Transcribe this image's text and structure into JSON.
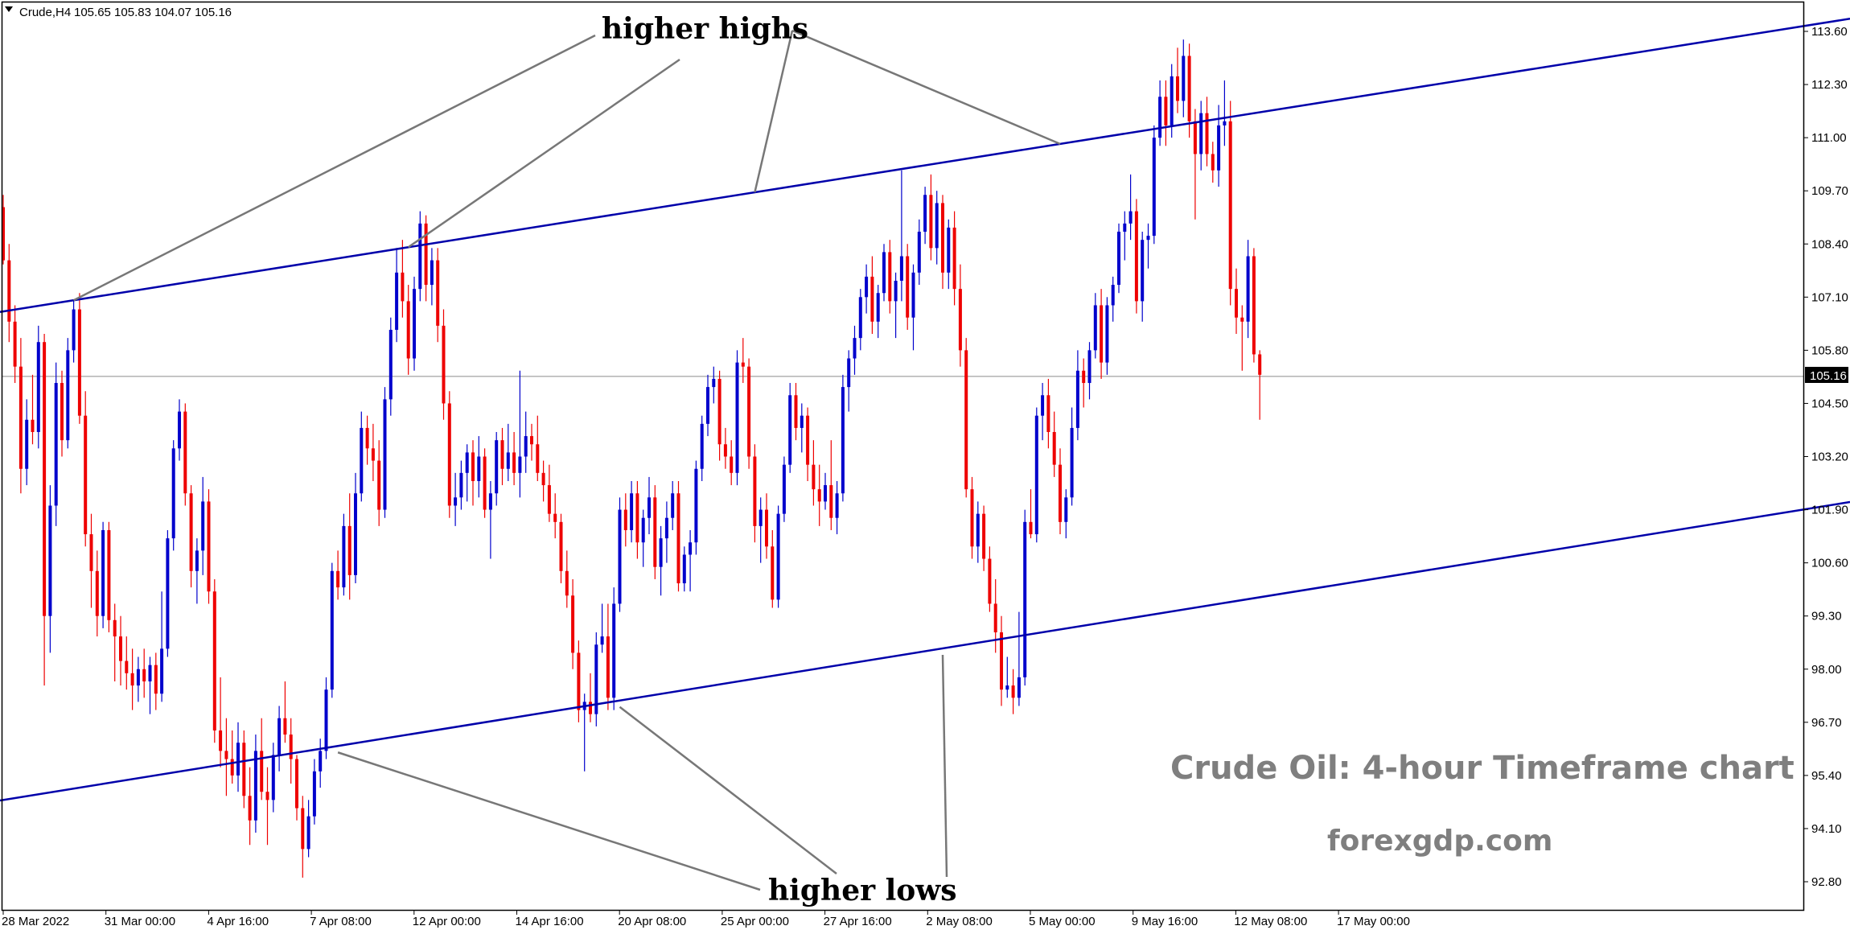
{
  "header": {
    "symbol": "Crude,H4",
    "ohlc": "105.65 105.83 104.07 105.16"
  },
  "chart_data": {
    "type": "candlestick",
    "title": "Crude Oil: 4-hour Timeframe chart",
    "watermark": "forexgdp.com",
    "current_price": "105.16",
    "y_ticks": [
      "113.60",
      "112.30",
      "111.00",
      "109.70",
      "108.40",
      "107.10",
      "105.80",
      "104.50",
      "103.20",
      "101.90",
      "100.60",
      "99.30",
      "98.00",
      "96.70",
      "95.40",
      "94.10",
      "92.80"
    ],
    "ylim": [
      92.8,
      113.6
    ],
    "x_ticks": [
      "28 Mar 2022",
      "31 Mar 00:00",
      "4 Apr 16:00",
      "7 Apr 08:00",
      "12 Apr 00:00",
      "14 Apr 16:00",
      "20 Apr 08:00",
      "25 Apr 00:00",
      "27 Apr 16:00",
      "2 May 08:00",
      "5 May 00:00",
      "9 May 16:00",
      "12 May 08:00",
      "17 May 00:00"
    ],
    "annotations": [
      "higher highs",
      "higher lows"
    ],
    "colors": {
      "up": "#0000cc",
      "down": "#ee0000",
      "trendline": "#0000aa",
      "pointer": "#777777",
      "price_line": "#8c8c8c"
    },
    "trendlines": [
      {
        "name": "resistance",
        "from": {
          "bar": 0,
          "price": 106.75
        },
        "to": {
          "bar": 246,
          "price": 112.35
        }
      },
      {
        "name": "support",
        "from": {
          "bar": 0,
          "price": 94.8
        },
        "to": {
          "bar": 246,
          "price": 100.5
        }
      }
    ],
    "anchors": [
      {
        "points": [
          {
            "bar": 12,
            "price": 120
          },
          {
            "bar": 46,
            "price": 120
          },
          {
            "bar": 69,
            "price": 120
          },
          {
            "bar": 102,
            "price": 120
          },
          {
            "bar": 137,
            "price": 120
          },
          {
            "bar": 180,
            "price": 120
          }
        ]
      },
      {
        "points": [
          {
            "bar": 57,
            "price": 98
          },
          {
            "bar": 105,
            "price": 98
          },
          {
            "bar": 158,
            "price": 98
          }
        ]
      }
    ],
    "candles": [
      [
        109.3,
        109.6,
        107.9,
        108.0
      ],
      [
        108.0,
        108.4,
        106.0,
        106.5
      ],
      [
        106.5,
        106.9,
        105.0,
        105.4
      ],
      [
        105.4,
        106.1,
        102.3,
        102.9
      ],
      [
        102.9,
        104.6,
        102.5,
        104.1
      ],
      [
        104.1,
        105.2,
        103.5,
        103.8
      ],
      [
        103.8,
        106.4,
        103.4,
        106.0
      ],
      [
        106.0,
        106.2,
        97.6,
        99.3
      ],
      [
        99.3,
        102.5,
        98.4,
        102.0
      ],
      [
        102.0,
        105.5,
        101.5,
        105.0
      ],
      [
        105.0,
        105.3,
        103.2,
        103.6
      ],
      [
        103.6,
        106.1,
        103.4,
        105.8
      ],
      [
        105.8,
        107.0,
        105.5,
        106.8
      ],
      [
        106.8,
        107.2,
        104.0,
        104.2
      ],
      [
        104.2,
        104.8,
        101.0,
        101.3
      ],
      [
        101.3,
        101.8,
        99.5,
        100.4
      ],
      [
        100.4,
        100.9,
        98.8,
        99.3
      ],
      [
        99.3,
        101.6,
        99.0,
        101.4
      ],
      [
        101.4,
        101.6,
        98.9,
        99.2
      ],
      [
        99.2,
        99.6,
        97.7,
        98.8
      ],
      [
        98.8,
        99.3,
        97.6,
        98.2
      ],
      [
        98.2,
        98.8,
        97.5,
        97.9
      ],
      [
        97.9,
        98.5,
        97.0,
        97.6
      ],
      [
        97.6,
        98.3,
        97.2,
        98.0
      ],
      [
        98.0,
        98.5,
        97.3,
        97.7
      ],
      [
        97.7,
        98.3,
        96.9,
        98.1
      ],
      [
        98.1,
        98.4,
        97.0,
        97.4
      ],
      [
        97.4,
        99.9,
        97.2,
        98.5
      ],
      [
        98.5,
        101.4,
        98.3,
        101.2
      ],
      [
        101.2,
        103.6,
        100.9,
        103.4
      ],
      [
        103.4,
        104.6,
        103.1,
        104.3
      ],
      [
        104.3,
        104.5,
        102.0,
        102.3
      ],
      [
        102.3,
        102.5,
        100.0,
        100.4
      ],
      [
        100.4,
        101.2,
        99.6,
        100.9
      ],
      [
        100.9,
        102.7,
        100.3,
        102.1
      ],
      [
        102.1,
        102.4,
        99.6,
        99.9
      ],
      [
        99.9,
        100.2,
        96.2,
        96.5
      ],
      [
        96.5,
        97.8,
        95.6,
        96.0
      ],
      [
        96.0,
        96.8,
        94.9,
        95.8
      ],
      [
        95.8,
        96.5,
        95.2,
        95.4
      ],
      [
        95.4,
        96.7,
        95.0,
        96.2
      ],
      [
        96.2,
        96.5,
        94.6,
        94.9
      ],
      [
        94.9,
        95.6,
        93.7,
        94.3
      ],
      [
        94.3,
        96.4,
        94.0,
        96.0
      ],
      [
        96.0,
        96.8,
        94.8,
        95.0
      ],
      [
        95.0,
        95.6,
        93.7,
        94.8
      ],
      [
        94.8,
        96.2,
        94.5,
        95.9
      ],
      [
        95.9,
        97.1,
        95.5,
        96.8
      ],
      [
        96.8,
        97.7,
        96.2,
        96.4
      ],
      [
        96.4,
        96.8,
        95.2,
        95.8
      ],
      [
        95.8,
        95.9,
        94.3,
        94.6
      ],
      [
        94.6,
        94.9,
        92.9,
        93.6
      ],
      [
        93.6,
        94.8,
        93.4,
        94.4
      ],
      [
        94.4,
        95.8,
        94.2,
        95.5
      ],
      [
        95.5,
        96.3,
        95.1,
        96.0
      ],
      [
        96.0,
        97.8,
        95.8,
        97.5
      ],
      [
        97.5,
        100.6,
        97.3,
        100.4
      ],
      [
        100.4,
        100.9,
        99.7,
        100.0
      ],
      [
        100.0,
        101.8,
        99.8,
        101.5
      ],
      [
        101.5,
        102.3,
        99.7,
        100.3
      ],
      [
        100.3,
        102.8,
        100.1,
        102.3
      ],
      [
        102.3,
        104.3,
        102.1,
        103.9
      ],
      [
        103.9,
        104.2,
        103.0,
        103.4
      ],
      [
        103.4,
        104.0,
        102.6,
        103.1
      ],
      [
        103.1,
        103.6,
        101.5,
        101.9
      ],
      [
        101.9,
        104.9,
        101.7,
        104.6
      ],
      [
        104.6,
        106.6,
        104.2,
        106.3
      ],
      [
        106.3,
        108.3,
        106.0,
        107.7
      ],
      [
        107.7,
        108.5,
        106.6,
        107.0
      ],
      [
        107.0,
        107.4,
        105.2,
        105.6
      ],
      [
        105.6,
        107.6,
        105.3,
        107.3
      ],
      [
        107.3,
        109.2,
        107.0,
        108.9
      ],
      [
        108.9,
        109.1,
        107.0,
        107.4
      ],
      [
        107.4,
        108.3,
        106.9,
        108.0
      ],
      [
        108.0,
        108.3,
        106.0,
        106.4
      ],
      [
        106.4,
        106.8,
        104.1,
        104.5
      ],
      [
        104.5,
        104.8,
        101.7,
        102.0
      ],
      [
        102.0,
        102.8,
        101.5,
        102.2
      ],
      [
        102.2,
        103.1,
        101.9,
        102.8
      ],
      [
        102.8,
        103.5,
        102.1,
        103.3
      ],
      [
        103.3,
        103.6,
        102.0,
        102.6
      ],
      [
        102.6,
        103.7,
        102.2,
        103.2
      ],
      [
        103.2,
        103.4,
        101.7,
        101.9
      ],
      [
        101.9,
        102.6,
        100.7,
        102.3
      ],
      [
        102.3,
        103.8,
        102.0,
        103.6
      ],
      [
        103.6,
        103.9,
        102.5,
        102.9
      ],
      [
        102.9,
        104.0,
        102.6,
        103.3
      ],
      [
        103.3,
        103.8,
        102.5,
        102.8
      ],
      [
        102.8,
        105.3,
        102.2,
        103.2
      ],
      [
        103.2,
        104.3,
        102.8,
        103.7
      ],
      [
        103.7,
        104.0,
        103.1,
        103.5
      ],
      [
        103.5,
        104.2,
        102.6,
        102.8
      ],
      [
        102.8,
        103.1,
        102.1,
        102.5
      ],
      [
        102.5,
        103.0,
        101.6,
        101.8
      ],
      [
        101.8,
        102.3,
        101.2,
        101.6
      ],
      [
        101.6,
        101.8,
        100.1,
        100.4
      ],
      [
        100.4,
        100.9,
        99.5,
        99.8
      ],
      [
        99.8,
        100.2,
        98.0,
        98.4
      ],
      [
        98.4,
        98.7,
        96.7,
        97.0
      ],
      [
        97.0,
        97.4,
        95.5,
        97.2
      ],
      [
        97.2,
        97.9,
        96.7,
        96.9
      ],
      [
        96.9,
        98.9,
        96.6,
        98.6
      ],
      [
        98.6,
        99.6,
        98.4,
        98.8
      ],
      [
        98.8,
        99.6,
        97.0,
        97.3
      ],
      [
        97.3,
        100.0,
        97.0,
        99.6
      ],
      [
        99.6,
        102.2,
        99.4,
        101.9
      ],
      [
        101.9,
        102.3,
        101.0,
        101.4
      ],
      [
        101.4,
        102.6,
        101.1,
        102.3
      ],
      [
        102.3,
        102.6,
        100.7,
        101.1
      ],
      [
        101.1,
        101.9,
        100.5,
        101.7
      ],
      [
        101.7,
        102.7,
        101.3,
        102.2
      ],
      [
        102.2,
        102.5,
        100.2,
        100.5
      ],
      [
        100.5,
        101.5,
        99.8,
        101.2
      ],
      [
        101.2,
        102.1,
        100.6,
        101.7
      ],
      [
        101.7,
        102.6,
        101.4,
        102.3
      ],
      [
        102.3,
        102.6,
        99.9,
        100.1
      ],
      [
        100.1,
        101.0,
        99.9,
        100.8
      ],
      [
        100.8,
        101.4,
        99.9,
        101.1
      ],
      [
        101.1,
        103.1,
        100.8,
        102.9
      ],
      [
        102.9,
        104.2,
        102.6,
        104.0
      ],
      [
        104.0,
        105.2,
        103.7,
        104.9
      ],
      [
        104.9,
        105.4,
        104.5,
        105.1
      ],
      [
        105.1,
        105.3,
        103.1,
        103.5
      ],
      [
        103.5,
        103.9,
        102.9,
        103.2
      ],
      [
        103.2,
        103.6,
        102.5,
        102.8
      ],
      [
        102.8,
        105.8,
        102.5,
        105.5
      ],
      [
        105.5,
        106.1,
        105.0,
        105.4
      ],
      [
        105.4,
        105.6,
        102.9,
        103.2
      ],
      [
        103.2,
        103.5,
        101.1,
        101.5
      ],
      [
        101.5,
        102.2,
        100.6,
        101.9
      ],
      [
        101.9,
        102.3,
        100.7,
        101.0
      ],
      [
        101.0,
        101.4,
        99.5,
        99.7
      ],
      [
        99.7,
        102.0,
        99.5,
        101.8
      ],
      [
        101.8,
        103.2,
        101.6,
        103.0
      ],
      [
        103.0,
        105.0,
        102.8,
        104.7
      ],
      [
        104.7,
        105.0,
        103.6,
        103.9
      ],
      [
        103.9,
        104.5,
        103.3,
        104.2
      ],
      [
        104.2,
        104.4,
        102.6,
        103.0
      ],
      [
        103.0,
        103.6,
        102.0,
        102.4
      ],
      [
        102.4,
        103.0,
        101.5,
        102.1
      ],
      [
        102.1,
        102.8,
        101.9,
        102.5
      ],
      [
        102.5,
        103.6,
        101.4,
        101.7
      ],
      [
        101.7,
        102.6,
        101.3,
        102.3
      ],
      [
        102.3,
        105.2,
        102.1,
        104.9
      ],
      [
        104.9,
        105.8,
        104.3,
        105.6
      ],
      [
        105.6,
        106.4,
        105.2,
        106.1
      ],
      [
        106.1,
        107.3,
        105.8,
        107.1
      ],
      [
        107.1,
        107.9,
        106.7,
        107.6
      ],
      [
        107.6,
        108.1,
        106.2,
        106.5
      ],
      [
        106.5,
        107.4,
        106.1,
        107.2
      ],
      [
        107.2,
        108.4,
        107.0,
        108.2
      ],
      [
        108.2,
        108.5,
        106.7,
        107.0
      ],
      [
        107.0,
        107.7,
        106.1,
        107.5
      ],
      [
        107.5,
        110.2,
        107.0,
        108.1
      ],
      [
        108.1,
        108.4,
        106.3,
        106.6
      ],
      [
        106.6,
        107.9,
        105.8,
        107.7
      ],
      [
        107.7,
        109.0,
        107.4,
        108.7
      ],
      [
        108.7,
        109.8,
        108.4,
        109.6
      ],
      [
        109.6,
        110.1,
        108.0,
        108.3
      ],
      [
        108.3,
        109.7,
        107.9,
        109.4
      ],
      [
        109.4,
        109.6,
        107.3,
        107.7
      ],
      [
        107.7,
        109.0,
        107.3,
        108.8
      ],
      [
        108.8,
        109.2,
        106.9,
        107.3
      ],
      [
        107.3,
        107.9,
        105.4,
        105.8
      ],
      [
        105.8,
        106.1,
        102.2,
        102.4
      ],
      [
        102.4,
        102.7,
        100.7,
        101.0
      ],
      [
        101.0,
        102.1,
        100.6,
        101.8
      ],
      [
        101.8,
        102.0,
        100.4,
        100.7
      ],
      [
        100.7,
        101.0,
        99.4,
        99.6
      ],
      [
        99.6,
        100.2,
        98.4,
        98.9
      ],
      [
        98.9,
        99.3,
        97.1,
        97.5
      ],
      [
        97.5,
        98.3,
        97.3,
        97.6
      ],
      [
        97.6,
        98.0,
        96.9,
        97.3
      ],
      [
        97.3,
        99.4,
        97.1,
        97.8
      ],
      [
        97.8,
        101.9,
        97.6,
        101.6
      ],
      [
        101.6,
        102.4,
        101.2,
        101.3
      ],
      [
        101.3,
        104.4,
        101.1,
        104.2
      ],
      [
        104.2,
        105.0,
        103.6,
        104.7
      ],
      [
        104.7,
        105.1,
        103.4,
        103.8
      ],
      [
        103.8,
        104.3,
        102.7,
        103.0
      ],
      [
        103.0,
        103.4,
        101.3,
        101.6
      ],
      [
        101.6,
        102.4,
        101.2,
        102.2
      ],
      [
        102.2,
        104.4,
        102.0,
        103.9
      ],
      [
        103.9,
        105.8,
        103.6,
        105.3
      ],
      [
        105.3,
        105.6,
        104.4,
        105.0
      ],
      [
        105.0,
        106.0,
        104.6,
        105.8
      ],
      [
        105.8,
        107.2,
        105.6,
        106.9
      ],
      [
        106.9,
        107.3,
        105.1,
        105.5
      ],
      [
        105.5,
        107.1,
        105.2,
        106.9
      ],
      [
        106.9,
        107.6,
        106.5,
        107.4
      ],
      [
        107.4,
        108.9,
        107.2,
        108.7
      ],
      [
        108.7,
        109.2,
        108.0,
        108.9
      ],
      [
        108.9,
        110.1,
        108.5,
        109.2
      ],
      [
        109.2,
        109.5,
        106.7,
        107.0
      ],
      [
        107.0,
        108.7,
        106.5,
        108.5
      ],
      [
        108.5,
        108.9,
        107.8,
        108.6
      ],
      [
        108.6,
        111.3,
        108.4,
        111.0
      ],
      [
        111.0,
        112.4,
        110.8,
        112.0
      ],
      [
        112.0,
        112.4,
        110.8,
        111.3
      ],
      [
        111.3,
        112.8,
        111.0,
        112.5
      ],
      [
        112.5,
        113.2,
        111.6,
        111.9
      ],
      [
        111.9,
        113.4,
        111.5,
        113.0
      ],
      [
        113.0,
        113.3,
        111.0,
        111.4
      ],
      [
        111.4,
        111.7,
        109.0,
        110.6
      ],
      [
        110.6,
        111.9,
        110.2,
        111.6
      ],
      [
        111.6,
        112.0,
        110.3,
        110.6
      ],
      [
        110.6,
        110.9,
        109.9,
        110.2
      ],
      [
        110.2,
        111.8,
        109.8,
        111.3
      ],
      [
        111.3,
        112.4,
        110.8,
        111.4
      ],
      [
        111.4,
        111.9,
        106.9,
        107.3
      ],
      [
        107.3,
        107.8,
        106.2,
        106.6
      ],
      [
        106.6,
        106.9,
        105.3,
        106.5
      ],
      [
        106.5,
        108.5,
        106.1,
        108.1
      ],
      [
        108.1,
        108.3,
        105.5,
        105.7
      ],
      [
        105.7,
        105.8,
        104.1,
        105.2
      ]
    ]
  }
}
